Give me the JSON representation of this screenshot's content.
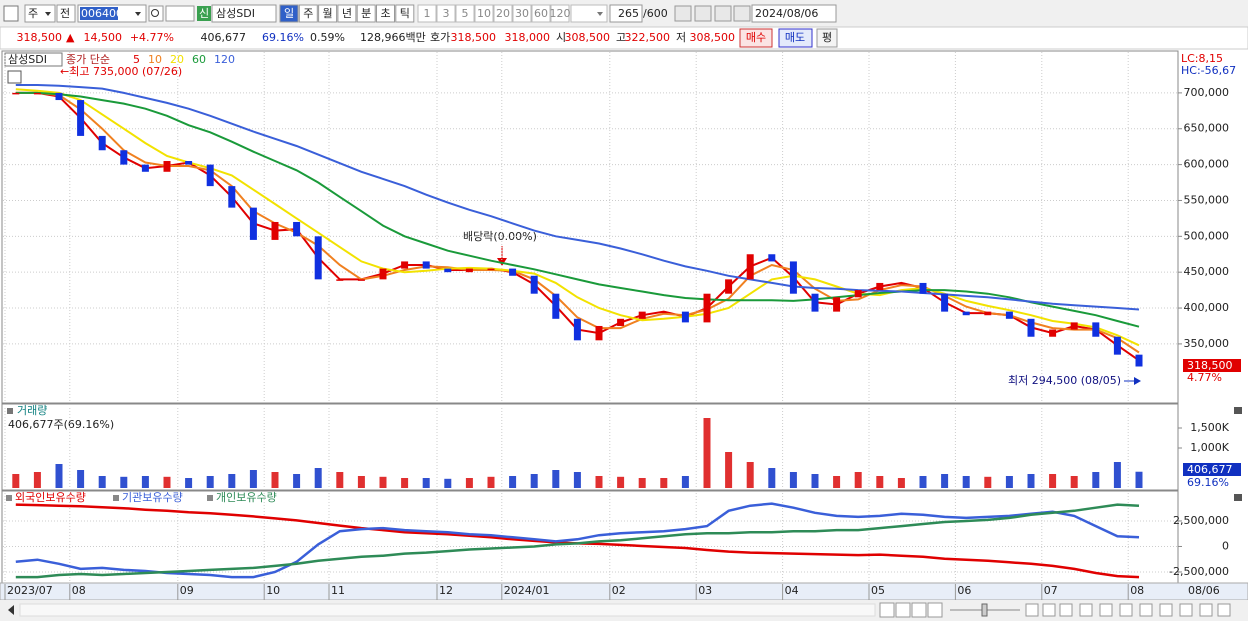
{
  "toolbar": {
    "market": "주",
    "prev": "전",
    "code": "006400",
    "new_badge": "신",
    "name": "삼성SDI",
    "periods": [
      "일",
      "주",
      "월",
      "년",
      "분",
      "초",
      "틱"
    ],
    "intervals": [
      "1",
      "3",
      "5",
      "10",
      "20",
      "30",
      "60",
      "120"
    ],
    "count": "265",
    "max_count": "/600",
    "date": "2024/08/06"
  },
  "quote": {
    "price": "318,500",
    "arrow": "▲",
    "change": "14,500",
    "change_pct": "+4.77%",
    "volume": "406,677",
    "volume_ratio": "69.16%",
    "turnover": "0.59%",
    "amount": "128,966백만",
    "ask_label": "호가",
    "ask": "318,500",
    "bid": "318,000",
    "open_label": "시",
    "open": "308,500",
    "high_label": "고",
    "high": "322,500",
    "low_label": "저",
    "low": "308,500",
    "buy": "매수",
    "sell": "매도",
    "avg": "평"
  },
  "chart_data": [
    {
      "type": "candlestick",
      "title": "삼성SDI",
      "legend_title": "종가 단순",
      "categories": [
        "2023/07",
        null,
        null,
        "08",
        null,
        null,
        null,
        null,
        "09",
        null,
        null,
        null,
        "10",
        null,
        null,
        "11",
        null,
        null,
        null,
        null,
        "12",
        null,
        null,
        "2024/01",
        null,
        null,
        null,
        null,
        "02",
        null,
        null,
        null,
        "03",
        null,
        null,
        null,
        "04",
        null,
        null,
        null,
        "05",
        null,
        null,
        null,
        "06",
        null,
        null,
        null,
        "07",
        null,
        null,
        null,
        "08"
      ],
      "values": [
        700000,
        700000,
        690000,
        640000,
        620000,
        600000,
        590000,
        605000,
        600000,
        570000,
        540000,
        495000,
        520000,
        500000,
        440000,
        440000,
        440000,
        455000,
        465000,
        455000,
        450000,
        455000,
        455000,
        445000,
        420000,
        385000,
        355000,
        375000,
        385000,
        395000,
        395000,
        380000,
        420000,
        440000,
        475000,
        465000,
        420000,
        395000,
        415000,
        425000,
        435000,
        435000,
        420000,
        395000,
        390000,
        395000,
        385000,
        360000,
        370000,
        380000,
        360000,
        335000,
        318500
      ],
      "up_color": "#e00000",
      "down_color": "#1030e0",
      "series": [
        {
          "name": "5",
          "color": "#e00000",
          "values": [
            700000,
            700000,
            695000,
            665000,
            630000,
            610000,
            595000,
            598000,
            603000,
            585000,
            555000,
            518000,
            508000,
            510000,
            470000,
            440000,
            440000,
            448000,
            460000,
            460000,
            453000,
            453000,
            455000,
            450000,
            433000,
            403000,
            370000,
            365000,
            380000,
            390000,
            395000,
            388000,
            400000,
            430000,
            458000,
            470000,
            443000,
            408000,
            405000,
            420000,
            430000,
            435000,
            428000,
            408000,
            393000,
            393000,
            390000,
            373000,
            365000,
            375000,
            370000,
            348000,
            327000
          ]
        },
        {
          "name": "10",
          "color": "#f08020",
          "values": [
            700000,
            700000,
            697000,
            677000,
            650000,
            620000,
            603000,
            598000,
            598000,
            592000,
            570000,
            535000,
            518000,
            505000,
            487000,
            460000,
            440000,
            445000,
            453000,
            458000,
            457000,
            453000,
            453000,
            452000,
            440000,
            417000,
            387000,
            372000,
            372000,
            385000,
            392000,
            390000,
            398000,
            413000,
            445000,
            460000,
            453000,
            427000,
            410000,
            412000,
            425000,
            432000,
            430000,
            417000,
            402000,
            393000,
            390000,
            380000,
            372000,
            370000,
            370000,
            358000,
            338000
          ]
        },
        {
          "name": "20",
          "color": "#f2e200",
          "values": [
            705000,
            703000,
            700000,
            690000,
            670000,
            650000,
            630000,
            612000,
            603000,
            595000,
            585000,
            565000,
            545000,
            525000,
            505000,
            485000,
            465000,
            455000,
            450000,
            452000,
            455000,
            456000,
            455000,
            452000,
            448000,
            435000,
            415000,
            400000,
            390000,
            383000,
            385000,
            388000,
            392000,
            400000,
            420000,
            440000,
            445000,
            440000,
            430000,
            420000,
            418000,
            425000,
            428000,
            420000,
            410000,
            403000,
            397000,
            390000,
            382000,
            378000,
            373000,
            362000,
            348000
          ]
        },
        {
          "name": "60",
          "color": "#1a9a3a",
          "values": [
            700000,
            700000,
            698000,
            695000,
            690000,
            685000,
            678000,
            668000,
            655000,
            645000,
            632000,
            618000,
            605000,
            592000,
            575000,
            555000,
            535000,
            515000,
            500000,
            490000,
            480000,
            473000,
            466000,
            460000,
            454000,
            447000,
            440000,
            433000,
            428000,
            423000,
            418000,
            414000,
            412000,
            411000,
            411000,
            411000,
            410000,
            412000,
            415000,
            418000,
            421000,
            423000,
            425000,
            425000,
            423000,
            420000,
            415000,
            408000,
            402000,
            396000,
            390000,
            382000,
            374000
          ]
        },
        {
          "name": "120",
          "color": "#3a5fd9",
          "values": [
            711000,
            711000,
            710000,
            708000,
            706000,
            700000,
            693000,
            686000,
            678000,
            668000,
            657000,
            646000,
            636000,
            626000,
            614000,
            602000,
            590000,
            580000,
            570000,
            558000,
            547000,
            537000,
            528000,
            518000,
            508000,
            500000,
            495000,
            490000,
            483000,
            475000,
            466000,
            458000,
            452000,
            445000,
            440000,
            435000,
            430000,
            428000,
            427000,
            425000,
            424000,
            423000,
            421000,
            419000,
            417000,
            415000,
            412000,
            409000,
            406000,
            404000,
            402000,
            400000,
            398000
          ]
        }
      ],
      "ylim": [
        269000,
        757000
      ],
      "yticks": [
        {
          "value": 350000,
          "label": "350,000"
        },
        {
          "value": 400000,
          "label": "400,000"
        },
        {
          "value": 450000,
          "label": "450,000"
        },
        {
          "value": 500000,
          "label": "500,000"
        },
        {
          "value": 550000,
          "label": "550,000"
        },
        {
          "value": 600000,
          "label": "600,000"
        },
        {
          "value": 650000,
          "label": "650,000"
        },
        {
          "value": 700000,
          "label": "700,000"
        }
      ],
      "grid": true,
      "annotations": [
        {
          "text": "←최고 735,000 (07/26)"
        },
        {
          "text": "배당락(0.00%)"
        },
        {
          "text": "최저 294,500 (08/05)"
        }
      ],
      "last_label": "318,500",
      "last_change": "4.77%",
      "lc": "LC:8,15",
      "hc": "HC:-56,67",
      "current_date": "08/06"
    },
    {
      "type": "bar",
      "title": "거래량",
      "summary": "406,677주(69.16%)",
      "values": [
        350000,
        400000,
        600000,
        450000,
        300000,
        280000,
        300000,
        280000,
        250000,
        300000,
        350000,
        450000,
        400000,
        350000,
        500000,
        400000,
        300000,
        280000,
        250000,
        250000,
        230000,
        250000,
        280000,
        300000,
        350000,
        450000,
        400000,
        300000,
        280000,
        250000,
        250000,
        300000,
        1750000,
        900000,
        650000,
        500000,
        400000,
        350000,
        300000,
        400000,
        300000,
        250000,
        300000,
        350000,
        300000,
        280000,
        300000,
        350000,
        350000,
        300000,
        400000,
        650000,
        406677
      ],
      "up_color": "#e03030",
      "down_color": "#3050d0",
      "ylim": [
        0,
        2000000
      ],
      "yticks": [
        {
          "value": 1000000,
          "label": "1,000K"
        },
        {
          "value": 1500000,
          "label": "1,500K"
        }
      ],
      "last_label": "406,677",
      "last_ratio": "69.16%"
    },
    {
      "type": "line",
      "series": [
        {
          "name": "외국인보유수량",
          "color": "#e00000",
          "values": [
            4100000,
            4050000,
            4000000,
            3950000,
            3850000,
            3750000,
            3600000,
            3500000,
            3350000,
            3250000,
            3100000,
            2950000,
            2750000,
            2550000,
            2300000,
            2050000,
            1800000,
            1600000,
            1400000,
            1300000,
            1200000,
            1050000,
            900000,
            700000,
            550000,
            400000,
            300000,
            250000,
            150000,
            50000,
            -50000,
            -150000,
            -350000,
            -500000,
            -600000,
            -650000,
            -700000,
            -750000,
            -800000,
            -850000,
            -800000,
            -900000,
            -1000000,
            -1200000,
            -1300000,
            -1400000,
            -1550000,
            -1700000,
            -1900000,
            -2200000,
            -2600000,
            -2900000,
            -3000000
          ]
        },
        {
          "name": "기관보유수량",
          "color": "#3a5fd9",
          "values": [
            -1500000,
            -1300000,
            -1700000,
            -2200000,
            -2100000,
            -2300000,
            -2400000,
            -2600000,
            -2700000,
            -2800000,
            -3000000,
            -3000000,
            -2500000,
            -1500000,
            200000,
            1500000,
            1700000,
            1800000,
            1600000,
            1500000,
            1400000,
            1200000,
            1100000,
            900000,
            700000,
            500000,
            700000,
            1100000,
            1300000,
            1400000,
            1500000,
            1700000,
            2000000,
            3500000,
            4000000,
            4200000,
            3800000,
            3300000,
            3000000,
            2900000,
            3000000,
            3200000,
            3100000,
            2900000,
            2800000,
            2900000,
            3000000,
            3200000,
            3400000,
            3000000,
            2000000,
            1000000,
            900000
          ]
        },
        {
          "name": "개인보유수량",
          "color": "#2e8b57",
          "values": [
            -3000000,
            -3000000,
            -2800000,
            -2700000,
            -2800000,
            -2700000,
            -2600000,
            -2500000,
            -2400000,
            -2300000,
            -2200000,
            -2100000,
            -1900000,
            -1700000,
            -1400000,
            -1200000,
            -1000000,
            -900000,
            -700000,
            -600000,
            -450000,
            -300000,
            -200000,
            -100000,
            0,
            200000,
            300000,
            500000,
            600000,
            800000,
            1000000,
            1200000,
            1300000,
            1300000,
            1400000,
            1400000,
            1500000,
            1500000,
            1600000,
            1600000,
            1800000,
            2000000,
            2200000,
            2400000,
            2500000,
            2600000,
            2800000,
            3100000,
            3300000,
            3500000,
            3800000,
            4100000,
            4000000
          ]
        }
      ],
      "ylim": [
        -3580000,
        5240000
      ],
      "yticks": [
        {
          "value": -2500000,
          "label": "-2,500,000"
        },
        0,
        {
          "value": 2500000,
          "label": "2,500,000"
        }
      ],
      "grid": true
    }
  ]
}
